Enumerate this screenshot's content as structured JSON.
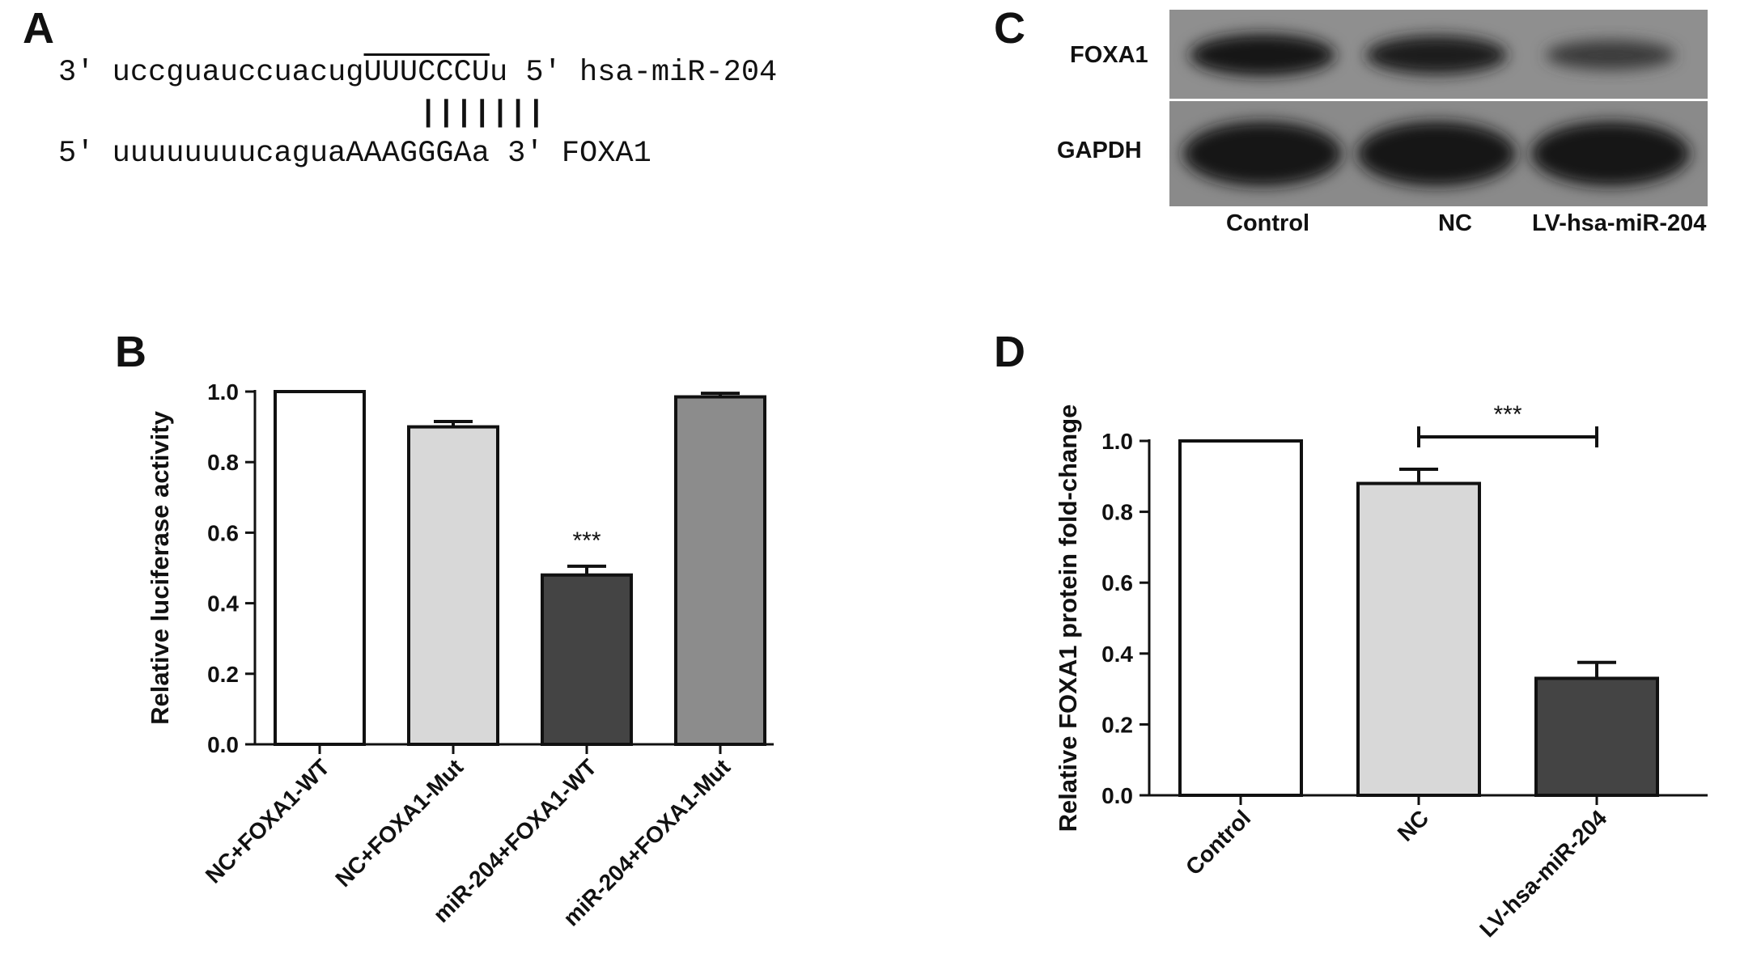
{
  "panels": {
    "a": "A",
    "b": "B",
    "c": "C",
    "d": "D"
  },
  "sequences": {
    "mirna": {
      "prime_start": "3'",
      "lower": "uccguauccuacug",
      "seed": "UUUCCCU",
      "tail": "u",
      "prime_end": "5'",
      "name": "hsa-miR-204"
    },
    "pairing": "|||||||",
    "target": {
      "prime_start": "5'",
      "lower": "uuuuuuuucagua",
      "seed": "AAAGGGA",
      "tail": "a",
      "prime_end": "3'",
      "name": "FOXA1"
    }
  },
  "blot": {
    "rows": [
      "FOXA1",
      "GAPDH"
    ],
    "lanes": [
      "Control",
      "NC",
      "LV-hsa-miR-204"
    ],
    "foxa1_band_strength": [
      1.0,
      0.85,
      0.45
    ],
    "gapdh_band_strength": [
      1.0,
      1.0,
      1.0
    ]
  },
  "chart_data": [
    {
      "panel": "B",
      "type": "bar",
      "categories": [
        "NC+FOXA1-WT",
        "NC+FOXA1-Mut",
        "miR-204+FOXA1-WT",
        "miR-204+FOXA1-Mut"
      ],
      "values": [
        1.0,
        0.9,
        0.48,
        0.985
      ],
      "errors": [
        0,
        0.015,
        0.025,
        0.01
      ],
      "colors": [
        "#ffffff",
        "#d8d8d8",
        "#444444",
        "#8c8c8c"
      ],
      "ylabel": "Relative luciferase activity",
      "ylim": [
        0,
        1.0
      ],
      "yticks": [
        "0.0",
        "0.2",
        "0.4",
        "0.6",
        "0.8",
        "1.0"
      ],
      "significance": {
        "category_index": 2,
        "label": "***"
      }
    },
    {
      "panel": "D",
      "type": "bar",
      "categories": [
        "Control",
        "NC",
        "LV-hsa-miR-204"
      ],
      "values": [
        1.0,
        0.88,
        0.33
      ],
      "errors": [
        0,
        0.04,
        0.045
      ],
      "colors": [
        "#ffffff",
        "#d8d8d8",
        "#444444"
      ],
      "ylabel": "Relative FOXA1 protein fold-change",
      "ylim": [
        0,
        1.0
      ],
      "yticks": [
        "0.0",
        "0.2",
        "0.4",
        "0.6",
        "0.8",
        "1.0"
      ],
      "significance": {
        "from_index": 1,
        "to_index": 2,
        "label": "***"
      }
    }
  ]
}
